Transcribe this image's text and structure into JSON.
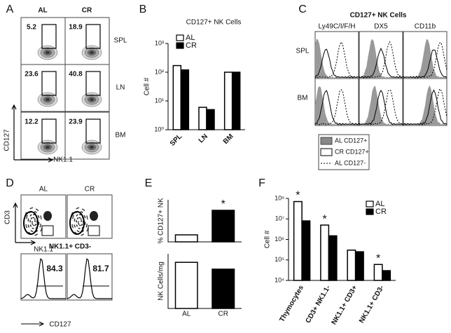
{
  "panel_labels": [
    "A",
    "B",
    "C",
    "D",
    "E",
    "F"
  ],
  "panel_a": {
    "columns": [
      "AL",
      "CR"
    ],
    "rows": [
      "SPL",
      "LN",
      "BM"
    ],
    "gates": [
      [
        5.2,
        18.9
      ],
      [
        23.6,
        40.8
      ],
      [
        12.2,
        23.9
      ]
    ],
    "y_axis": "CD127",
    "x_axis": "NK1.1"
  },
  "panel_c": {
    "title": "CD127+ NK Cells",
    "columns": [
      "Ly49C/I/F/H",
      "DX5",
      "CD11b"
    ],
    "rows": [
      "SPL",
      "BM"
    ],
    "legend": [
      "AL CD127+",
      "CR CD127+",
      "AL CD127-"
    ]
  },
  "panel_d": {
    "columns": [
      "AL",
      "CR"
    ],
    "y_axis": "CD3",
    "x_axis": "NK1.1",
    "subtitle": "NK1.1+ CD3-",
    "gates": [
      84.3,
      81.7
    ],
    "hist_axis": "CD127"
  },
  "chart_data": [
    {
      "type": "bar",
      "title": "CD127+ NK Cells",
      "y_label": "Cell #",
      "log_y": true,
      "legend": "top-left",
      "categories": [
        "SPL",
        "LN",
        "BM"
      ],
      "series": [
        {
          "name": "AL",
          "color": "#ffffff",
          "values": [
            170,
            6,
            100
          ]
        },
        {
          "name": "CR",
          "color": "#000000",
          "values": [
            120,
            5,
            100
          ]
        }
      ],
      "ylim": [
        1,
        1000
      ],
      "yticks": [
        {
          "value": 1,
          "label": "10⁰"
        },
        {
          "value": 10,
          "label": "10¹"
        },
        {
          "value": 100,
          "label": "10²"
        },
        {
          "value": 1000,
          "label": "10³"
        }
      ]
    },
    {
      "type": "bar",
      "y_label": "% CD127+ NK",
      "categories": [
        null,
        null
      ],
      "colors": [
        "#ffffff",
        "#000000"
      ],
      "values": [
        0.1,
        0.45
      ],
      "annotations": [
        null,
        "*"
      ],
      "ylim": [
        0,
        0.6
      ]
    },
    {
      "type": "bar",
      "y_label": "NK Cells/mg",
      "categories": [
        "AL",
        "CR"
      ],
      "colors": [
        "#ffffff",
        "#000000"
      ],
      "values": [
        1.35,
        1.15
      ],
      "ylim": [
        0,
        1.6
      ]
    },
    {
      "type": "bar",
      "y_label": "Cell #",
      "log_y": true,
      "legend": "top-right",
      "categories": [
        "Thymocytes",
        "CD3+ NK1.1-",
        "NK1.1+ CD3+",
        "NK1.1+ CD3-"
      ],
      "series": [
        {
          "name": "AL",
          "color": "#ffffff",
          "values": [
            70000000,
            5000000,
            300000,
            60000
          ]
        },
        {
          "name": "CR",
          "color": "#000000",
          "values": [
            8000000,
            1500000,
            250000,
            30000
          ]
        }
      ],
      "annotations": [
        "*",
        "*",
        null,
        "*"
      ],
      "ylim": [
        10000,
        100000000
      ],
      "yticks": [
        {
          "value": 10000,
          "label": "10⁴"
        },
        {
          "value": 100000,
          "label": "10⁵"
        },
        {
          "value": 1000000,
          "label": "10⁶"
        },
        {
          "value": 10000000,
          "label": "10⁷"
        },
        {
          "value": 100000000,
          "label": "10⁸"
        }
      ]
    }
  ]
}
